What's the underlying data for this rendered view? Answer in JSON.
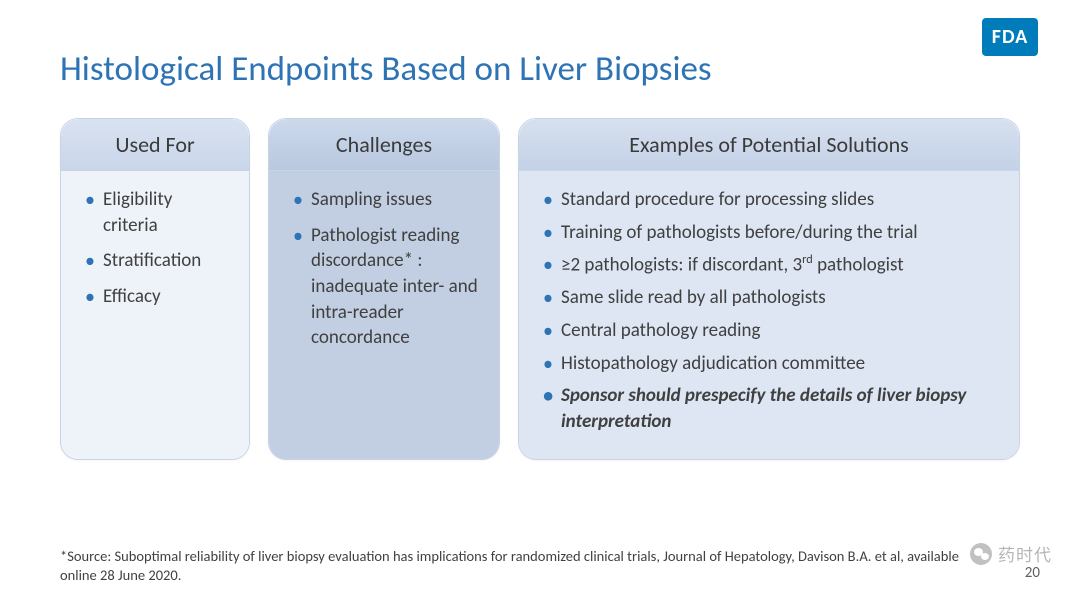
{
  "logo_text": "FDA",
  "logo_bg": "#007cba",
  "title": "Histological Endpoints Based on Liver Biopsies",
  "title_color": "#2e74b5",
  "columns": {
    "c1": {
      "header": "Used For",
      "body_bg": "#eef3fa",
      "items": [
        {
          "text": "Eligibility criteria"
        },
        {
          "text": "Stratification"
        },
        {
          "text": "Efficacy"
        }
      ]
    },
    "c2": {
      "header": "Challenges",
      "body_bg": "#c2cee2",
      "items": [
        {
          "text": "Sampling issues"
        },
        {
          "text": "Pathologist reading discordance* : inadequate inter- and intra-reader concordance"
        }
      ]
    },
    "c3": {
      "header": "Examples of Potential Solutions",
      "body_bg": "#dde6f2",
      "items": [
        {
          "text": "Standard procedure for processing slides"
        },
        {
          "text": "Training of pathologists before/during the trial"
        },
        {
          "html": "≥2 pathologists: if discordant, 3<sup>rd</sup> pathologist"
        },
        {
          "text": "Same slide read by all pathologists"
        },
        {
          "text": "Central pathology reading"
        },
        {
          "text": "Histopathology adjudication committee"
        },
        {
          "text": "Sponsor should prespecify the details of liver biopsy interpretation",
          "emph": true
        }
      ]
    }
  },
  "bullet_color": "#2e74b5",
  "card_border": "#c8d4e6",
  "footnote": "*Source: Suboptimal reliability of liver biopsy evaluation has implications for randomized clinical trials, Journal of Hepatology, Davison B.A. et al, available online 28 June 2020.",
  "page_number": "20",
  "watermark_text": "药时代"
}
